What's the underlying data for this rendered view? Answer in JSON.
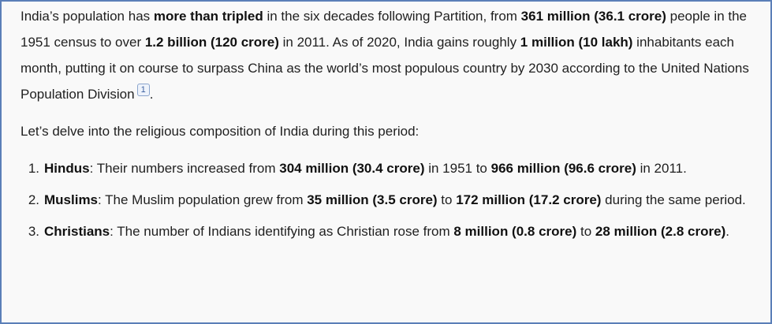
{
  "paragraphs": [
    {
      "runs": [
        {
          "text": "India’s population has "
        },
        {
          "text": "more than tripled",
          "bold": true
        },
        {
          "text": " in the six decades following Partition, from "
        },
        {
          "text": "361 million (36.1 crore)",
          "bold": true
        },
        {
          "text": " people in the 1951 census to over "
        },
        {
          "text": "1.2 billion (120 crore)",
          "bold": true
        },
        {
          "text": " in 2011. As of 2020, India gains roughly "
        },
        {
          "text": "1 million (10 lakh)",
          "bold": true
        },
        {
          "text": " inhabitants each month, putting it on course to surpass China as the world’s most populous country by 2030 according to the United Nations Population Division"
        },
        {
          "text": "1",
          "citation": true
        },
        {
          "text": "."
        }
      ]
    },
    {
      "runs": [
        {
          "text": "Let’s delve into the religious composition of India during this period:"
        }
      ]
    }
  ],
  "list": [
    {
      "number": "1.",
      "runs": [
        {
          "text": "Hindus",
          "bold": true
        },
        {
          "text": ": Their numbers increased from "
        },
        {
          "text": "304 million (30.4 crore)",
          "bold": true
        },
        {
          "text": " in 1951 to "
        },
        {
          "text": "966 million (96.6 crore)",
          "bold": true
        },
        {
          "text": " in 2011."
        }
      ]
    },
    {
      "number": "2.",
      "runs": [
        {
          "text": "Muslims",
          "bold": true
        },
        {
          "text": ": The Muslim population grew from "
        },
        {
          "text": "35 million (3.5 crore)",
          "bold": true
        },
        {
          "text": " to "
        },
        {
          "text": "172 million (17.2 crore)",
          "bold": true
        },
        {
          "text": " during the same period."
        }
      ]
    },
    {
      "number": "3.",
      "runs": [
        {
          "text": "Christians",
          "bold": true
        },
        {
          "text": ": The number of Indians identifying as Christian rose from "
        },
        {
          "text": "8 million (0.8 crore)",
          "bold": true
        },
        {
          "text": " to "
        },
        {
          "text": "28 million (2.8 crore)",
          "bold": true
        },
        {
          "text": "."
        }
      ]
    }
  ]
}
